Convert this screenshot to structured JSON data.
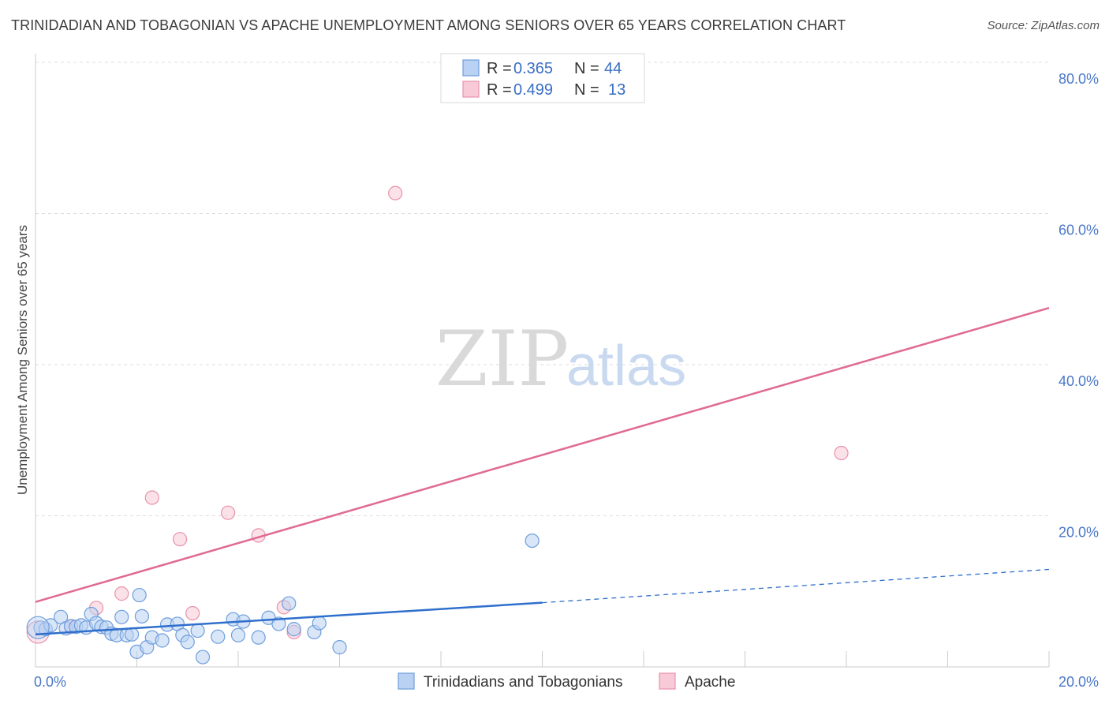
{
  "title": "TRINIDADIAN AND TOBAGONIAN VS APACHE UNEMPLOYMENT AMONG SENIORS OVER 65 YEARS CORRELATION CHART",
  "source": "Source: ZipAtlas.com",
  "watermark": {
    "zip": "ZIP",
    "atlas": "atlas"
  },
  "colors": {
    "blue_fill": "#b9d2f3",
    "blue_stroke": "#6f9edc",
    "blue_line": "#2f6fcc",
    "pink_fill": "#f8c9d6",
    "pink_stroke": "#e893ad",
    "pink_line": "#e06a93",
    "grid": "#dddddd",
    "tick_label": "#4a78c8"
  },
  "legend": {
    "rows": [
      {
        "r_label": "R =",
        "r_value": "0.365",
        "n_label": "N =",
        "n_value": "44"
      },
      {
        "r_label": "R =",
        "r_value": "0.499",
        "n_label": "N =",
        "n_value": "13"
      }
    ]
  },
  "chart_data": {
    "type": "scatter",
    "title": "TRINIDADIAN AND TOBAGONIAN VS APACHE UNEMPLOYMENT AMONG SENIORS OVER 65 YEARS CORRELATION CHART",
    "xlabel": "",
    "ylabel": "Unemployment Among Seniors over 65 years",
    "xlim": [
      0,
      20
    ],
    "ylim": [
      0,
      80
    ],
    "x_tick_labels": [
      "0.0%",
      "20.0%"
    ],
    "y_ticks": [
      20,
      40,
      60,
      80
    ],
    "y_tick_labels": [
      "20.0%",
      "40.0%",
      "60.0%",
      "80.0%"
    ],
    "grid": true,
    "legend_position": "top-center",
    "series": [
      {
        "name": "Trinidadians and Tobagonians",
        "color": "#b9d2f3",
        "r": 0.365,
        "n": 44,
        "trend": {
          "x0": 0,
          "y0": 4.3,
          "x1": 10,
          "y1": 8.5,
          "dashed_to_x": 20,
          "dashed_to_y": 12.9
        },
        "points": [
          [
            0.1,
            5.2
          ],
          [
            0.2,
            5.0
          ],
          [
            0.3,
            5.5
          ],
          [
            0.5,
            6.6
          ],
          [
            0.6,
            5.1
          ],
          [
            0.7,
            5.4
          ],
          [
            0.8,
            5.3
          ],
          [
            0.9,
            5.5
          ],
          [
            1.0,
            5.2
          ],
          [
            1.1,
            7.0
          ],
          [
            1.2,
            5.8
          ],
          [
            1.3,
            5.3
          ],
          [
            1.4,
            5.2
          ],
          [
            1.5,
            4.4
          ],
          [
            1.6,
            4.2
          ],
          [
            1.7,
            6.6
          ],
          [
            1.8,
            4.2
          ],
          [
            1.9,
            4.3
          ],
          [
            2.0,
            2.0
          ],
          [
            2.05,
            9.5
          ],
          [
            2.1,
            6.7
          ],
          [
            2.2,
            2.6
          ],
          [
            2.3,
            3.9
          ],
          [
            2.5,
            3.5
          ],
          [
            2.6,
            5.6
          ],
          [
            2.8,
            5.7
          ],
          [
            2.9,
            4.2
          ],
          [
            3.0,
            3.3
          ],
          [
            3.2,
            4.8
          ],
          [
            3.3,
            1.3
          ],
          [
            3.6,
            4.0
          ],
          [
            3.9,
            6.3
          ],
          [
            4.0,
            4.2
          ],
          [
            4.1,
            6.0
          ],
          [
            4.4,
            3.9
          ],
          [
            4.6,
            6.5
          ],
          [
            4.8,
            5.7
          ],
          [
            5.0,
            8.4
          ],
          [
            5.1,
            5.0
          ],
          [
            5.5,
            4.6
          ],
          [
            5.6,
            5.8
          ],
          [
            6.0,
            2.6
          ],
          [
            9.8,
            16.7
          ],
          [
            0.05,
            5.2
          ]
        ]
      },
      {
        "name": "Apache",
        "color": "#f8c9d6",
        "r": 0.499,
        "n": 13,
        "trend": {
          "x0": 0,
          "y0": 8.6,
          "x1": 20,
          "y1": 47.5
        },
        "points": [
          [
            0.05,
            4.6
          ],
          [
            0.7,
            5.3
          ],
          [
            1.2,
            7.8
          ],
          [
            1.7,
            9.7
          ],
          [
            2.3,
            22.4
          ],
          [
            2.85,
            16.9
          ],
          [
            3.1,
            7.1
          ],
          [
            3.8,
            20.4
          ],
          [
            4.4,
            17.4
          ],
          [
            4.9,
            7.9
          ],
          [
            5.1,
            4.6
          ],
          [
            7.1,
            62.7
          ],
          [
            15.9,
            28.3
          ]
        ]
      }
    ]
  }
}
